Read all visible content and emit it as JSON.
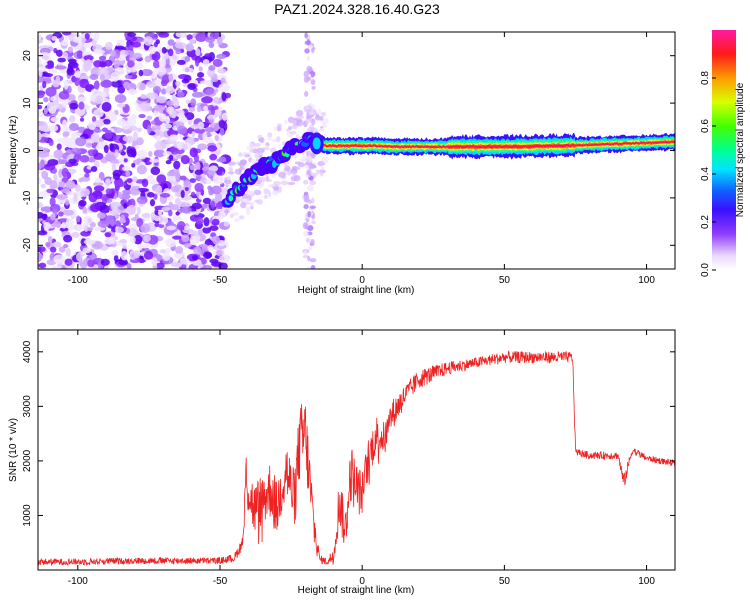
{
  "title": "PAZ1.2024.328.16.40.G23",
  "chart_data": [
    {
      "type": "heatmap",
      "xlabel": "Height of straight line (km)",
      "ylabel": "Frequency (Hz)",
      "xlim": [
        -114,
        110
      ],
      "ylim": [
        -25,
        25
      ],
      "xticks": [
        -100,
        -50,
        0,
        50,
        100
      ],
      "yticks": [
        -20,
        -10,
        0,
        10,
        20
      ],
      "ridge": {
        "x": [
          -48,
          -44,
          -40,
          -35,
          -30,
          -25,
          -20,
          -17,
          -13,
          -8,
          -3,
          0,
          5,
          10,
          20,
          30,
          40,
          50,
          60,
          70,
          80,
          90,
          100,
          110
        ],
        "freq": [
          -11,
          -8,
          -6,
          -3.5,
          -2,
          0,
          2,
          2.5,
          1,
          1,
          1,
          1,
          1,
          0.8,
          0.8,
          0.8,
          0.8,
          0.8,
          0.9,
          1,
          1.2,
          1.4,
          1.6,
          1.8
        ]
      },
      "colorbar": {
        "label": "Normalized spectral amplitude",
        "ticks": [
          "0.0",
          "0.2",
          "0.4",
          "0.6",
          "0.8"
        ],
        "range": [
          0,
          1
        ]
      }
    },
    {
      "type": "line",
      "xlabel": "Height of straight line (km)",
      "ylabel": "SNR (10 * v/v)",
      "xlim": [
        -114,
        110
      ],
      "ylim": [
        0,
        4400
      ],
      "xticks": [
        -100,
        -50,
        0,
        50,
        100
      ],
      "yticks": [
        1000,
        2000,
        3000,
        4000
      ],
      "series_color": "#ee2222",
      "series": [
        {
          "x": [
            -114,
            -100,
            -80,
            -60,
            -50,
            -45,
            -42,
            -41,
            -38,
            -35,
            -32,
            -30,
            -27,
            -24,
            -22,
            -20,
            -17,
            -15,
            -12,
            -10,
            -8,
            -6,
            -4,
            -2,
            0,
            2,
            5,
            8,
            10,
            15,
            20,
            25,
            30,
            40,
            50,
            60,
            70,
            74,
            75,
            76,
            80,
            85,
            90,
            92,
            95,
            100,
            105,
            110
          ],
          "y": [
            150,
            150,
            170,
            170,
            170,
            220,
            500,
            1700,
            1100,
            1300,
            1500,
            1100,
            1900,
            1300,
            2300,
            2500,
            800,
            200,
            150,
            300,
            1300,
            700,
            1800,
            1500,
            1400,
            2000,
            2500,
            2400,
            2800,
            3200,
            3500,
            3600,
            3700,
            3800,
            3900,
            3900,
            3900,
            3900,
            2200,
            2150,
            2100,
            2100,
            2100,
            1600,
            2200,
            2050,
            2000,
            1950
          ],
          "noise": [
            60,
            60,
            60,
            60,
            60,
            80,
            120,
            550,
            500,
            500,
            550,
            500,
            600,
            550,
            700,
            750,
            400,
            80,
            60,
            200,
            500,
            400,
            550,
            500,
            400,
            400,
            350,
            300,
            300,
            200,
            180,
            150,
            120,
            100,
            110,
            110,
            110,
            100,
            80,
            70,
            70,
            70,
            70,
            150,
            70,
            60,
            60,
            60
          ]
        }
      ]
    }
  ]
}
